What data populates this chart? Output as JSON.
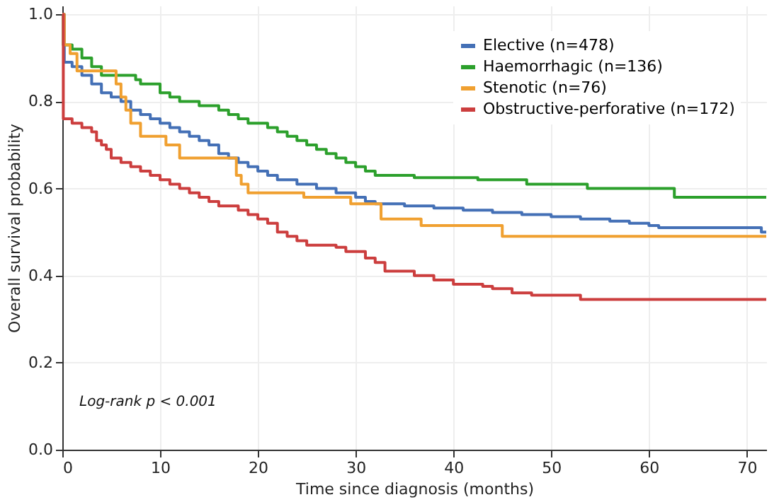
{
  "chart_data": {
    "type": "step",
    "xlabel": "Time since diagnosis (months)",
    "ylabel": "Overall survival probability",
    "xlim": [
      0,
      72
    ],
    "xticks": [
      0,
      10,
      20,
      30,
      40,
      50,
      60,
      70
    ],
    "ylim": [
      0,
      1.02
    ],
    "yticks": [
      {
        "value": 0,
        "label": "0.0"
      },
      0.2,
      0.4,
      0.6,
      0.8,
      {
        "value": 1,
        "label": "1.0"
      }
    ],
    "grid": true,
    "legend": "top right",
    "line_style": "solid",
    "marker": "none",
    "annotations": [
      "Log-rank p < 0.001"
    ],
    "series": [
      {
        "name": "Elective (n=478)",
        "color": "#4470b6",
        "x": [
          0,
          0.2,
          1,
          2,
          3,
          4,
          5,
          6,
          7,
          8,
          9,
          10,
          11,
          12,
          13,
          14,
          15,
          16,
          17,
          18,
          19,
          20,
          21,
          22,
          24,
          26,
          28,
          30,
          31,
          32,
          35,
          38,
          41,
          44,
          47,
          50,
          53,
          56,
          58,
          60,
          61,
          71.5,
          72
        ],
        "values": [
          1.0,
          0.89,
          0.88,
          0.86,
          0.84,
          0.82,
          0.81,
          0.8,
          0.78,
          0.77,
          0.76,
          0.75,
          0.74,
          0.73,
          0.72,
          0.71,
          0.7,
          0.68,
          0.67,
          0.66,
          0.65,
          0.64,
          0.63,
          0.62,
          0.61,
          0.6,
          0.59,
          0.58,
          0.57,
          0.565,
          0.56,
          0.555,
          0.55,
          0.545,
          0.54,
          0.535,
          0.53,
          0.525,
          0.52,
          0.515,
          0.51,
          0.5,
          0.5
        ]
      },
      {
        "name": "Haemorrhagic (n=136)",
        "color": "#2ca02c",
        "x": [
          0,
          0.1,
          1,
          2,
          3,
          4,
          7.5,
          8,
          10,
          11,
          12,
          14,
          16,
          17,
          18,
          19,
          21,
          22,
          23,
          24,
          25,
          26,
          27,
          28,
          29,
          30,
          31,
          32,
          36,
          42.5,
          47.5,
          53.7,
          62.6,
          72
        ],
        "values": [
          1.0,
          0.93,
          0.92,
          0.9,
          0.88,
          0.86,
          0.85,
          0.84,
          0.82,
          0.81,
          0.8,
          0.79,
          0.78,
          0.77,
          0.76,
          0.75,
          0.74,
          0.73,
          0.72,
          0.71,
          0.7,
          0.69,
          0.68,
          0.67,
          0.66,
          0.65,
          0.64,
          0.63,
          0.625,
          0.62,
          0.61,
          0.6,
          0.58,
          0.58
        ]
      },
      {
        "name": "Stenotic (n=76)",
        "color": "#f0a030",
        "x": [
          0,
          0.2,
          0.8,
          1.5,
          5.5,
          6,
          6.5,
          7,
          8,
          10.6,
          12,
          17.8,
          18.3,
          19,
          24.7,
          29.5,
          32.6,
          36.7,
          45,
          72
        ],
        "values": [
          1.0,
          0.93,
          0.91,
          0.87,
          0.84,
          0.81,
          0.78,
          0.75,
          0.72,
          0.7,
          0.67,
          0.63,
          0.61,
          0.59,
          0.58,
          0.565,
          0.53,
          0.515,
          0.49,
          0.49
        ]
      },
      {
        "name": "Obstructive-perforative (n=172)",
        "color": "#cc3e3e",
        "x": [
          0,
          0.1,
          1,
          2,
          3,
          3.5,
          4,
          4.5,
          5,
          6,
          7,
          8,
          9,
          10,
          11,
          12,
          13,
          14,
          15,
          16,
          18,
          19,
          20,
          21,
          22,
          23,
          24,
          25,
          28,
          29,
          31,
          32,
          33,
          36,
          38,
          40,
          43,
          44,
          46,
          48,
          53,
          72
        ],
        "values": [
          1.0,
          0.76,
          0.75,
          0.74,
          0.73,
          0.71,
          0.7,
          0.69,
          0.67,
          0.66,
          0.65,
          0.64,
          0.63,
          0.62,
          0.61,
          0.6,
          0.59,
          0.58,
          0.57,
          0.56,
          0.55,
          0.54,
          0.53,
          0.52,
          0.5,
          0.49,
          0.48,
          0.47,
          0.465,
          0.455,
          0.44,
          0.43,
          0.41,
          0.4,
          0.39,
          0.38,
          0.375,
          0.37,
          0.36,
          0.355,
          0.345,
          0.345
        ]
      }
    ]
  }
}
